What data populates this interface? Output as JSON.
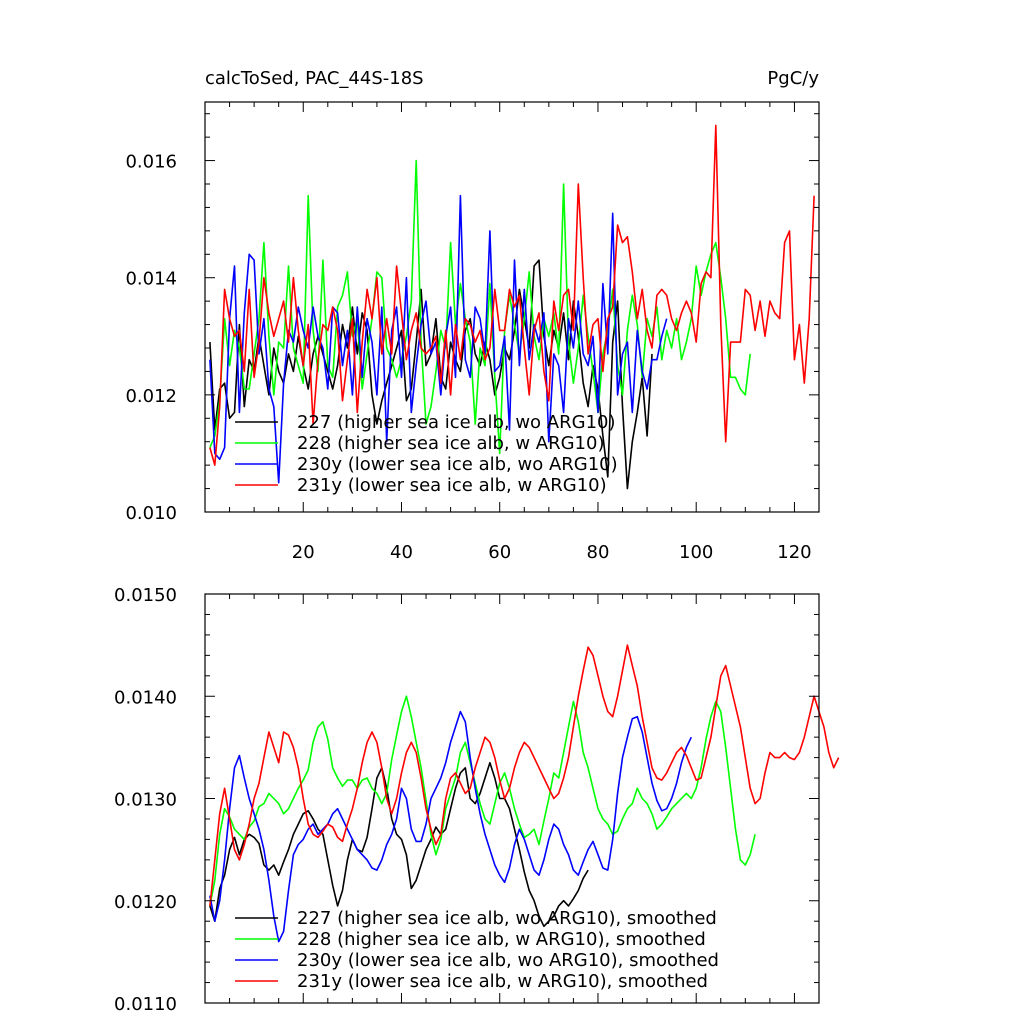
{
  "chart_data": [
    {
      "type": "line",
      "title_left": "calcToSed, PAC_44S-18S",
      "title_right": "PgC/y",
      "xlim": [
        0,
        125
      ],
      "ylim": [
        0.01,
        0.017
      ],
      "x_ticks": [
        20,
        40,
        60,
        80,
        100,
        120
      ],
      "x_tick_labels": [
        "20",
        "40",
        "60",
        "80",
        "100",
        "120"
      ],
      "y_ticks": [
        0.01,
        0.012,
        0.014,
        0.016
      ],
      "y_tick_labels": [
        "0.010",
        "0.012",
        "0.014",
        "0.016"
      ],
      "legend_position": "bottom-left",
      "series": [
        {
          "name": "227 (higher sea ice alb, wo ARG10)",
          "color": "#000000",
          "x_start": 1,
          "values": [
            0.0129,
            0.0114,
            0.0121,
            0.0122,
            0.0116,
            0.0117,
            0.0132,
            0.0118,
            0.0126,
            0.0124,
            0.013,
            0.0125,
            0.012,
            0.0128,
            0.0124,
            0.0122,
            0.0127,
            0.0124,
            0.013,
            0.0125,
            0.0121,
            0.0127,
            0.013,
            0.0127,
            0.0124,
            0.0121,
            0.0125,
            0.0132,
            0.0128,
            0.0135,
            0.0127,
            0.0134,
            0.0131,
            0.012,
            0.0115,
            0.0119,
            0.0122,
            0.0125,
            0.0128,
            0.0131,
            0.0119,
            0.0121,
            0.0129,
            0.0138,
            0.0125,
            0.0127,
            0.0133,
            0.0123,
            0.0121,
            0.0129,
            0.0126,
            0.0124,
            0.0131,
            0.0133,
            0.0127,
            0.0125,
            0.0129,
            0.0126,
            0.012,
            0.0123,
            0.0128,
            0.0126,
            0.0131,
            0.0138,
            0.0133,
            0.0128,
            0.0142,
            0.0143,
            0.013,
            0.0125,
            0.0131,
            0.0128,
            0.0134,
            0.0126,
            0.0136,
            0.013,
            0.0122,
            0.0118,
            0.0125,
            0.0121,
            0.0113,
            0.0106,
            0.0129,
            0.0136,
            0.0118,
            0.0104,
            0.0112,
            0.0117,
            0.0123,
            0.0113,
            0.0127
          ]
        },
        {
          "name": "228 (higher sea ice alb, w ARG10)",
          "color": "#00ff00",
          "x_start": 1,
          "values": [
            0.0111,
            0.0113,
            0.0119,
            0.0133,
            0.0125,
            0.0131,
            0.0128,
            0.0121,
            0.0121,
            0.0127,
            0.0133,
            0.0146,
            0.013,
            0.012,
            0.0129,
            0.0128,
            0.0142,
            0.0128,
            0.0125,
            0.0122,
            0.0154,
            0.0131,
            0.0124,
            0.0143,
            0.0125,
            0.0123,
            0.0135,
            0.0137,
            0.0141,
            0.013,
            0.0133,
            0.0121,
            0.0127,
            0.0133,
            0.0141,
            0.014,
            0.0128,
            0.0126,
            0.0123,
            0.0126,
            0.013,
            0.0136,
            0.016,
            0.0129,
            0.0115,
            0.0118,
            0.0124,
            0.0131,
            0.0128,
            0.0146,
            0.0132,
            0.0139,
            0.0133,
            0.0129,
            0.0115,
            0.0128,
            0.0125,
            0.0139,
            0.0123,
            0.011,
            0.0131,
            0.0137,
            0.0132,
            0.0127,
            0.0133,
            0.0141,
            0.013,
            0.0126,
            0.0133,
            0.013,
            0.0134,
            0.0127,
            0.0156,
            0.0129,
            0.0122,
            0.0128,
            0.0137,
            0.013,
            0.0124,
            0.0117,
            0.0127,
            0.0131,
            0.0138,
            0.0125,
            0.012,
            0.0131,
            0.0137,
            0.0132,
            0.0123,
            0.0133,
            0.013,
            0.0135,
            0.0126,
            0.0131,
            0.0128,
            0.0133,
            0.0126,
            0.0129,
            0.0133,
            0.0142,
            0.0137,
            0.0141,
            0.0144,
            0.0146,
            0.014,
            0.0133,
            0.0123,
            0.0123,
            0.0121,
            0.012,
            0.0127
          ]
        },
        {
          "name": "230y (lower sea ice alb, wo ARG10)",
          "color": "#0000ff",
          "x_start": 1,
          "values": [
            0.0126,
            0.011,
            0.0109,
            0.0111,
            0.0133,
            0.0142,
            0.0117,
            0.0134,
            0.0144,
            0.0143,
            0.0127,
            0.0133,
            0.0121,
            0.0118,
            0.0105,
            0.0122,
            0.0131,
            0.0129,
            0.0135,
            0.0131,
            0.0128,
            0.0135,
            0.013,
            0.0128,
            0.0121,
            0.0135,
            0.0134,
            0.0125,
            0.0131,
            0.012,
            0.0135,
            0.0123,
            0.0133,
            0.0129,
            0.012,
            0.0135,
            0.0112,
            0.0131,
            0.0135,
            0.0123,
            0.014,
            0.0117,
            0.0125,
            0.0132,
            0.0136,
            0.0127,
            0.0129,
            0.012,
            0.013,
            0.0135,
            0.0123,
            0.0154,
            0.0126,
            0.0123,
            0.0135,
            0.0133,
            0.0127,
            0.0148,
            0.0124,
            0.0125,
            0.013,
            0.0114,
            0.0143,
            0.0125,
            0.0138,
            0.0126,
            0.0132,
            0.0129,
            0.0134,
            0.0112,
            0.0127,
            0.0125,
            0.0117,
            0.0133,
            0.0128,
            0.0136,
            0.0127,
            0.0125,
            0.013,
            0.0117,
            0.0139,
            0.0127,
            0.0151,
            0.012,
            0.0127,
            0.0129,
            0.0117,
            0.0131,
            0.0124,
            0.0121,
            0.0126,
            0.0126,
            0.013,
            0.0133
          ]
        },
        {
          "name": "231y (lower sea ice alb, w ARG10)",
          "color": "#ff0000",
          "x_start": 1,
          "values": [
            0.0111,
            0.0108,
            0.0118,
            0.0138,
            0.0133,
            0.013,
            0.0131,
            0.0124,
            0.0138,
            0.0123,
            0.0129,
            0.014,
            0.0134,
            0.013,
            0.0133,
            0.0136,
            0.0129,
            0.014,
            0.0131,
            0.0125,
            0.0132,
            0.0115,
            0.0126,
            0.0132,
            0.0131,
            0.0135,
            0.0131,
            0.0119,
            0.0126,
            0.0133,
            0.0117,
            0.0129,
            0.0138,
            0.0133,
            0.014,
            0.0127,
            0.0133,
            0.0127,
            0.0142,
            0.0134,
            0.0126,
            0.0131,
            0.0134,
            0.0128,
            0.0127,
            0.0128,
            0.013,
            0.0122,
            0.0131,
            0.012,
            0.0132,
            0.0126,
            0.0133,
            0.0132,
            0.0129,
            0.0131,
            0.0126,
            0.0128,
            0.0138,
            0.0131,
            0.0131,
            0.0138,
            0.0135,
            0.0137,
            0.0128,
            0.012,
            0.0131,
            0.0134,
            0.0124,
            0.0119,
            0.0136,
            0.0131,
            0.0137,
            0.0138,
            0.0131,
            0.0156,
            0.014,
            0.0127,
            0.0132,
            0.0133,
            0.0124,
            0.0133,
            0.0135,
            0.0149,
            0.0146,
            0.0147,
            0.0141,
            0.0133,
            0.0138,
            0.0131,
            0.0128,
            0.0137,
            0.0138,
            0.0137,
            0.0133,
            0.0131,
            0.0134,
            0.0136,
            0.0134,
            0.0129,
            0.0139,
            0.0141,
            0.014,
            0.0166,
            0.0132,
            0.0112,
            0.0129,
            0.0129,
            0.0129,
            0.0138,
            0.0137,
            0.0131,
            0.0136,
            0.013,
            0.0136,
            0.0134,
            0.0133,
            0.0146,
            0.0148,
            0.0126,
            0.0132,
            0.0122,
            0.0133,
            0.0154
          ]
        }
      ]
    },
    {
      "type": "line",
      "xlim": [
        0,
        125
      ],
      "ylim": [
        0.011,
        0.015
      ],
      "x_ticks": [
        20,
        40,
        60,
        80,
        100,
        120
      ],
      "y_ticks": [
        0.011,
        0.012,
        0.013,
        0.014,
        0.015
      ],
      "y_tick_labels": [
        "0.0110",
        "0.0120",
        "0.0130",
        "0.0140",
        "0.0150"
      ],
      "legend_position": "bottom-left",
      "series": [
        {
          "name": "227 (higher sea ice alb, wo ARG10), smoothed",
          "color": "#000000",
          "x_start": 1,
          "values": [
            0.01195,
            0.0118,
            0.01212,
            0.01225,
            0.0125,
            0.01262,
            0.01245,
            0.0126,
            0.01265,
            0.01262,
            0.01256,
            0.01235,
            0.0123,
            0.01235,
            0.01225,
            0.01238,
            0.0125,
            0.01265,
            0.01275,
            0.01285,
            0.01288,
            0.0128,
            0.0127,
            0.01265,
            0.0124,
            0.01215,
            0.01195,
            0.0121,
            0.0124,
            0.0126,
            0.0125,
            0.01248,
            0.01262,
            0.0129,
            0.0132,
            0.0133,
            0.0131,
            0.0128,
            0.01265,
            0.0126,
            0.01245,
            0.01212,
            0.0122,
            0.01235,
            0.0125,
            0.0126,
            0.01272,
            0.01265,
            0.0127,
            0.0129,
            0.0131,
            0.01325,
            0.0133,
            0.013,
            0.01295,
            0.01305,
            0.0132,
            0.01335,
            0.0132,
            0.013,
            0.013,
            0.0129,
            0.0127,
            0.0125,
            0.01228,
            0.0121,
            0.012,
            0.01185,
            0.01175,
            0.0118,
            0.01185,
            0.01195,
            0.012,
            0.01195,
            0.01202,
            0.0121,
            0.01222,
            0.0123
          ]
        },
        {
          "name": "228 (higher sea ice alb, w ARG10), smoothed",
          "color": "#00ff00",
          "x_start": 1,
          "values": [
            0.01195,
            0.0122,
            0.01265,
            0.0129,
            0.01282,
            0.0127,
            0.01265,
            0.0126,
            0.01272,
            0.01278,
            0.01292,
            0.01295,
            0.01305,
            0.013,
            0.01295,
            0.01285,
            0.0129,
            0.013,
            0.0131,
            0.01318,
            0.01328,
            0.01355,
            0.0137,
            0.01375,
            0.01358,
            0.0133,
            0.0132,
            0.01312,
            0.01318,
            0.01318,
            0.0131,
            0.01318,
            0.0132,
            0.0131,
            0.01305,
            0.01295,
            0.01305,
            0.01338,
            0.01362,
            0.01385,
            0.014,
            0.0138,
            0.01355,
            0.0133,
            0.01298,
            0.01265,
            0.01245,
            0.0126,
            0.0129,
            0.01305,
            0.0132,
            0.01345,
            0.01355,
            0.01335,
            0.01315,
            0.01295,
            0.0128,
            0.01275,
            0.01295,
            0.01315,
            0.01325,
            0.0131,
            0.0129,
            0.01275,
            0.01262,
            0.01265,
            0.0127,
            0.01255,
            0.01278,
            0.013,
            0.01325,
            0.0132,
            0.01345,
            0.0137,
            0.01395,
            0.01375,
            0.01345,
            0.0133,
            0.0131,
            0.0129,
            0.0128,
            0.01275,
            0.01265,
            0.01268,
            0.0128,
            0.0129,
            0.01295,
            0.0131,
            0.013,
            0.01295,
            0.01285,
            0.0127,
            0.01275,
            0.01282,
            0.0129,
            0.01295,
            0.013,
            0.01305,
            0.013,
            0.0131,
            0.0133,
            0.01358,
            0.0138,
            0.01395,
            0.01385,
            0.0135,
            0.0131,
            0.0127,
            0.0124,
            0.01235,
            0.01245,
            0.01265
          ]
        },
        {
          "name": "230y (lower sea ice alb, wo ARG10), smoothed",
          "color": "#0000ff",
          "x_start": 1,
          "values": [
            0.01205,
            0.0118,
            0.012,
            0.0124,
            0.0129,
            0.0133,
            0.01342,
            0.0132,
            0.013,
            0.01285,
            0.0127,
            0.0125,
            0.0122,
            0.01185,
            0.0116,
            0.0117,
            0.0121,
            0.01245,
            0.01255,
            0.0126,
            0.0127,
            0.01275,
            0.01265,
            0.0127,
            0.01275,
            0.01285,
            0.0129,
            0.0128,
            0.0127,
            0.0126,
            0.0125,
            0.01245,
            0.0124,
            0.01232,
            0.0123,
            0.0124,
            0.01255,
            0.01265,
            0.0128,
            0.0131,
            0.013,
            0.0127,
            0.01258,
            0.01258,
            0.01275,
            0.013,
            0.0131,
            0.0132,
            0.01335,
            0.01355,
            0.0137,
            0.01385,
            0.01375,
            0.0134,
            0.0131,
            0.01285,
            0.01265,
            0.0125,
            0.01235,
            0.01225,
            0.01218,
            0.01232,
            0.01255,
            0.0127,
            0.0126,
            0.01245,
            0.0123,
            0.01225,
            0.0124,
            0.0126,
            0.01275,
            0.0127,
            0.01255,
            0.01245,
            0.0123,
            0.01225,
            0.01238,
            0.0125,
            0.01258,
            0.01245,
            0.01232,
            0.0123,
            0.0126,
            0.01305,
            0.0134,
            0.0136,
            0.01378,
            0.0138,
            0.01365,
            0.0134,
            0.01315,
            0.01298,
            0.01288,
            0.0129,
            0.013,
            0.01315,
            0.01335,
            0.0135,
            0.0136
          ]
        },
        {
          "name": "231y (lower sea ice alb, w ARG10), smoothed",
          "color": "#ff0000",
          "x_start": 1,
          "values": [
            0.01195,
            0.0124,
            0.01285,
            0.0131,
            0.0128,
            0.0125,
            0.0124,
            0.01255,
            0.01275,
            0.013,
            0.01315,
            0.0134,
            0.01365,
            0.0135,
            0.01335,
            0.01365,
            0.01362,
            0.0135,
            0.0133,
            0.013,
            0.01275,
            0.01265,
            0.01262,
            0.01268,
            0.01275,
            0.01272,
            0.01262,
            0.01258,
            0.01275,
            0.0129,
            0.0131,
            0.01335,
            0.01355,
            0.01365,
            0.01355,
            0.0133,
            0.013,
            0.01285,
            0.013,
            0.01325,
            0.01345,
            0.01355,
            0.01345,
            0.0132,
            0.0129,
            0.0127,
            0.01255,
            0.01265,
            0.013,
            0.0132,
            0.01325,
            0.01315,
            0.01305,
            0.0131,
            0.0133,
            0.01345,
            0.0136,
            0.01355,
            0.0134,
            0.01318,
            0.013,
            0.0131,
            0.0133,
            0.01345,
            0.01355,
            0.0135,
            0.0134,
            0.0133,
            0.0132,
            0.0131,
            0.013,
            0.01305,
            0.0132,
            0.0134,
            0.0137,
            0.014,
            0.01425,
            0.01448,
            0.0144,
            0.0142,
            0.014,
            0.01385,
            0.0138,
            0.014,
            0.01425,
            0.0145,
            0.0143,
            0.0141,
            0.0138,
            0.01355,
            0.0133,
            0.0132,
            0.01318,
            0.01325,
            0.01335,
            0.01345,
            0.0135,
            0.01342,
            0.0133,
            0.01318,
            0.0132,
            0.0134,
            0.0136,
            0.0139,
            0.0142,
            0.0143,
            0.0141,
            0.0139,
            0.0137,
            0.0134,
            0.0131,
            0.01295,
            0.013,
            0.01325,
            0.01345,
            0.0134,
            0.0134,
            0.01345,
            0.0134,
            0.01338,
            0.01345,
            0.0136,
            0.0138,
            0.014,
            0.01385,
            0.0137,
            0.01345,
            0.0133,
            0.0134
          ]
        }
      ]
    }
  ]
}
